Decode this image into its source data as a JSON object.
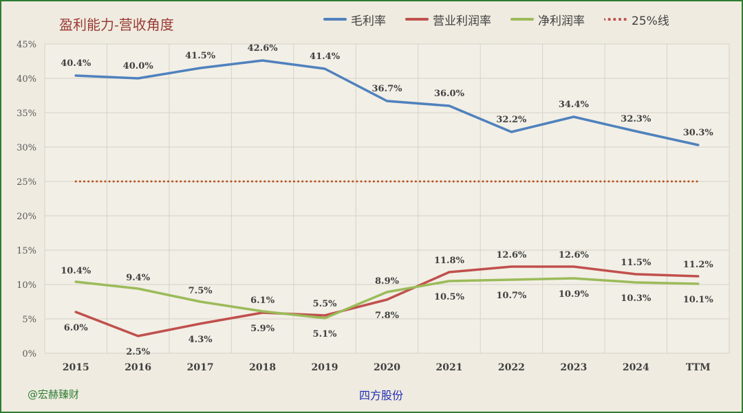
{
  "title": "盈利能力-营收角度",
  "footer": {
    "watermark": "@宏赫臻财",
    "company": "四方股份"
  },
  "chart_data": {
    "type": "line",
    "title": "盈利能力-营收角度",
    "categories": [
      "2015",
      "2016",
      "2017",
      "2018",
      "2019",
      "2020",
      "2021",
      "2022",
      "2023",
      "2024",
      "TTM"
    ],
    "ylim": [
      0,
      45
    ],
    "yticks": [
      0,
      5,
      10,
      15,
      20,
      25,
      30,
      35,
      40,
      45
    ],
    "ytick_labels": [
      "0%",
      "5%",
      "10%",
      "15%",
      "20%",
      "25%",
      "30%",
      "35%",
      "40%",
      "45%"
    ],
    "grid": true,
    "legend_position": "top-right",
    "series": [
      {
        "name": "毛利率",
        "color": "#4f81bd",
        "values": [
          40.4,
          40.0,
          41.5,
          42.6,
          41.4,
          36.7,
          36.0,
          32.2,
          34.4,
          32.3,
          30.3
        ],
        "labels": [
          "40.4%",
          "40.0%",
          "41.5%",
          "42.6%",
          "41.4%",
          "36.7%",
          "36.0%",
          "32.2%",
          "34.4%",
          "32.3%",
          "30.3%"
        ]
      },
      {
        "name": "营业利润率",
        "color": "#c0504d",
        "values": [
          6.0,
          2.5,
          4.3,
          5.9,
          5.5,
          7.8,
          11.8,
          12.6,
          12.6,
          11.5,
          11.2
        ],
        "labels": [
          "6.0%",
          "2.5%",
          "4.3%",
          "5.9%",
          "5.5%",
          "7.8%",
          "11.8%",
          "12.6%",
          "12.6%",
          "11.5%",
          "11.2%"
        ]
      },
      {
        "name": "净利润率",
        "color": "#9bbb59",
        "values": [
          10.4,
          9.4,
          7.5,
          6.1,
          5.1,
          8.9,
          10.5,
          10.7,
          10.9,
          10.3,
          10.1
        ],
        "labels": [
          "10.4%",
          "9.4%",
          "7.5%",
          "6.1%",
          "5.1%",
          "8.9%",
          "10.5%",
          "10.7%",
          "10.9%",
          "10.3%",
          "10.1%"
        ]
      },
      {
        "name": "25%线",
        "color": "#c0504d",
        "style": "dotted",
        "values": [
          25,
          25,
          25,
          25,
          25,
          25,
          25,
          25,
          25,
          25,
          25
        ]
      }
    ]
  }
}
